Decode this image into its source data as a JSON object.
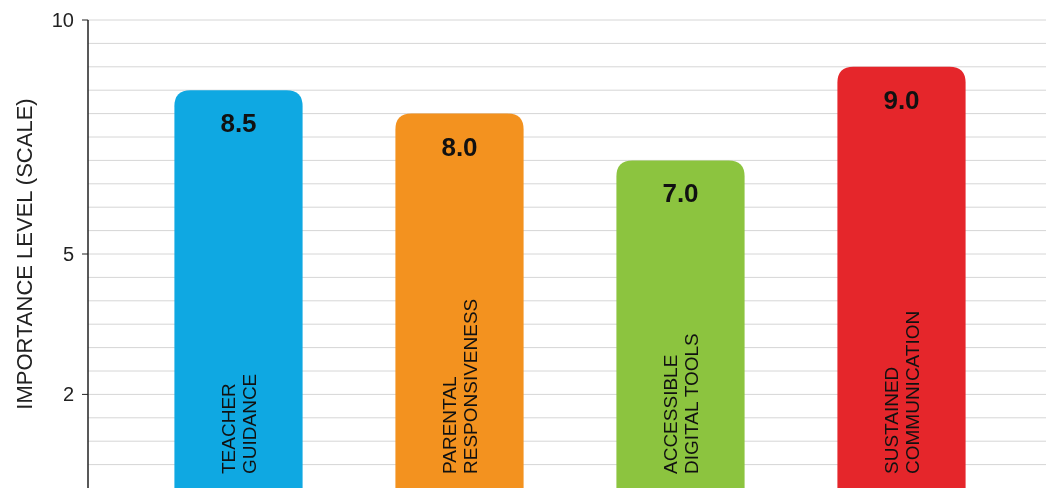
{
  "chart_data": {
    "type": "bar",
    "ylabel": "IMPORTANCE LEVEL (SCALE)",
    "categories": [
      "TEACHER\nGUIDANCE",
      "PARENTAL\nRESPONSIVENESS",
      "ACCESSIBLE\nDIGITAL TOOLS",
      "SUSTAINED\nCOMMUNICATION"
    ],
    "values": [
      8.5,
      8.0,
      7.0,
      9.0
    ],
    "colors": [
      "#0fa8e2",
      "#f3921f",
      "#8cc43f",
      "#e5262b"
    ],
    "value_labels": [
      "8.5",
      "8.0",
      "7.0",
      "9.0"
    ],
    "ylim": [
      0,
      10
    ],
    "yticks": [
      {
        "value": 0.5,
        "label": null
      },
      {
        "value": 1,
        "label": null
      },
      {
        "value": 1.5,
        "label": null
      },
      2,
      {
        "value": 2.5,
        "label": null
      },
      {
        "value": 3,
        "label": null
      },
      {
        "value": 3.5,
        "label": null
      },
      {
        "value": 4,
        "label": null
      },
      {
        "value": 4.5,
        "label": null
      },
      5,
      {
        "value": 5.5,
        "label": null
      },
      {
        "value": 6,
        "label": null
      },
      {
        "value": 6.5,
        "label": null
      },
      {
        "value": 7,
        "label": null
      },
      {
        "value": 7.5,
        "label": null
      },
      {
        "value": 8,
        "label": null
      },
      {
        "value": 8.5,
        "label": null
      },
      {
        "value": 9,
        "label": null
      },
      {
        "value": 9.5,
        "label": null
      },
      10
    ],
    "grid": "y"
  }
}
